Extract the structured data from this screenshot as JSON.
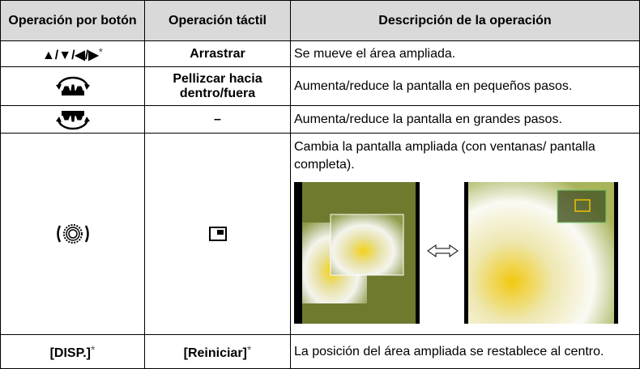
{
  "table": {
    "header": [
      "Operación por botón",
      "Operación táctil",
      "Descripción de la operación"
    ],
    "rows": [
      [
        {
          "text": "▲/▼/◀/▶",
          "note": "*"
        },
        {
          "text": "Arrastrar"
        },
        {
          "text": "Se mueve el área ampliada."
        }
      ],
      [
        {
          "text": ""
        },
        {
          "text": "Pellizcar hacia dentro/fuera"
        },
        {
          "text": "Aumenta/reduce la pantalla en pequeños pasos."
        }
      ],
      [
        {
          "text": ""
        },
        {
          "text": "–"
        },
        {
          "text": "Aumenta/reduce la pantalla en grandes pasos."
        }
      ],
      [
        {
          "text": ""
        },
        {
          "text": ""
        },
        {
          "text": "Cambia la pantalla ampliada (con ventanas/ pantalla completa)."
        }
      ],
      [
        {
          "text": "[DISP.]",
          "note": "*"
        },
        {
          "text": "[Reiniciar]",
          "note": "*"
        },
        {
          "text": "La posición del área ampliada se restablece al centro."
        }
      ]
    ]
  }
}
